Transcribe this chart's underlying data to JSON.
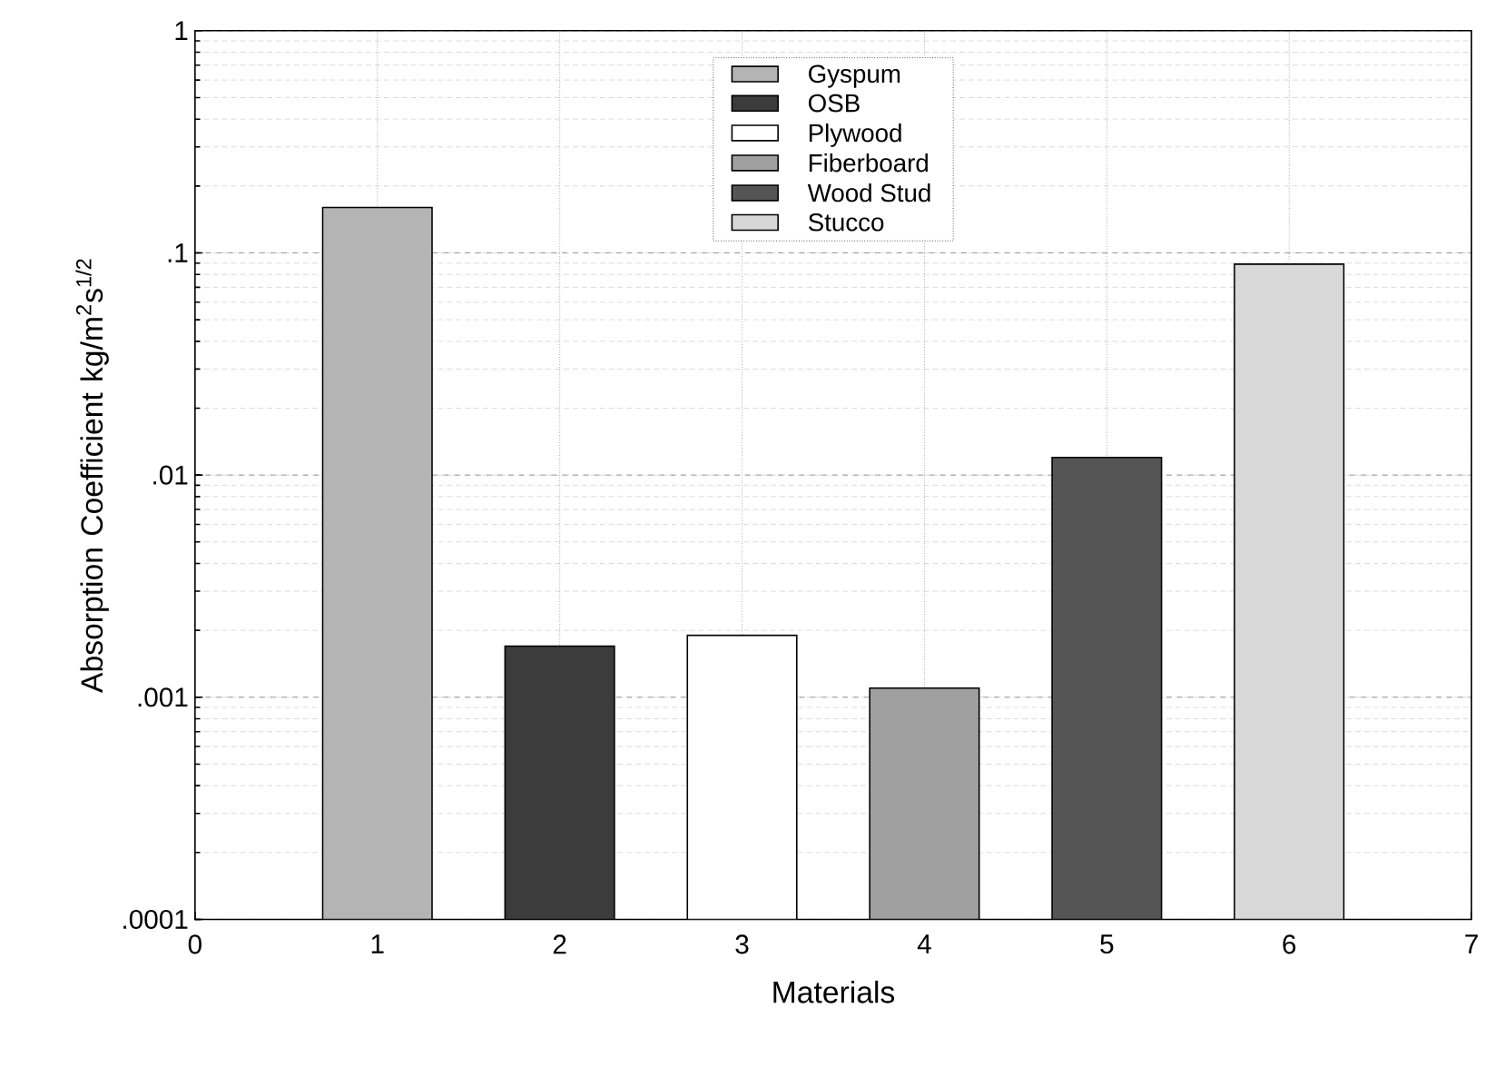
{
  "chart_data": {
    "type": "bar",
    "xlabel": "Materials",
    "ylabel": "Absorption Coefficient kg/m$^{2}$s$^{1/2}$",
    "log": "y",
    "grid": true,
    "legend": "top",
    "xlim": [
      0,
      7
    ],
    "xticks": [
      0,
      1,
      2,
      3,
      4,
      5,
      6,
      7
    ],
    "ylim": [
      0.0001,
      1
    ],
    "yticks": [
      {
        "value": 0.0001,
        "label": ".0001"
      },
      {
        "value": 0.001,
        "label": ".001"
      },
      {
        "value": 0.01,
        "label": ".01"
      },
      {
        "value": 0.1,
        "label": ".1"
      },
      1
    ],
    "series": [
      {
        "name": "Gyspum",
        "color": "#b4b4b4",
        "x": [
          1
        ],
        "values": [
          0.16
        ]
      },
      {
        "name": "OSB",
        "color": "#3c3c3c",
        "x": [
          2
        ],
        "values": [
          0.0017
        ]
      },
      {
        "name": "Plywood",
        "color": "#ffffff",
        "x": [
          3
        ],
        "values": [
          0.0019
        ]
      },
      {
        "name": "Fiberboard",
        "color": "#a0a0a0",
        "x": [
          4
        ],
        "values": [
          0.0011
        ]
      },
      {
        "name": "Wood Stud",
        "color": "#555555",
        "x": [
          5
        ],
        "values": [
          0.012
        ]
      },
      {
        "name": "Stucco",
        "color": "#d8d8d8",
        "x": [
          6
        ],
        "values": [
          0.089
        ]
      }
    ]
  }
}
